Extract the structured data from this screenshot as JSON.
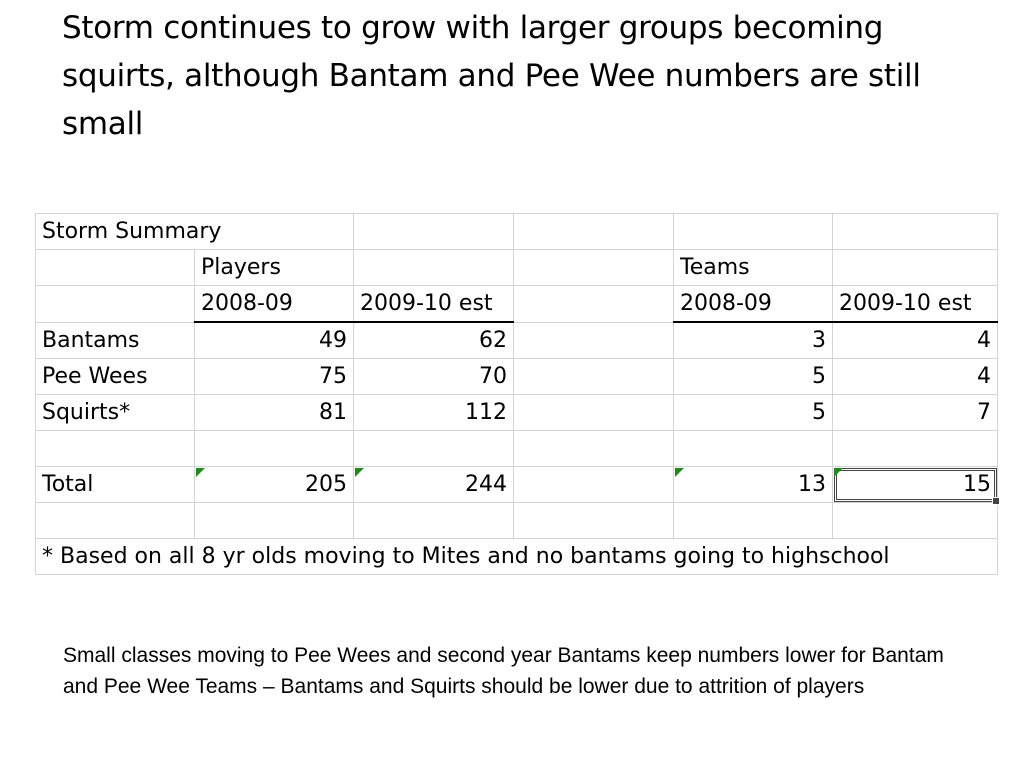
{
  "slide": {
    "title": "Storm continues to grow with larger groups becoming squirts, although Bantam and Pee Wee numbers are still small",
    "footnote": "Small classes moving to Pee Wees and second year Bantams keep numbers lower for Bantam and Pee Wee Teams – Bantams and Squirts should be lower due to attrition of players"
  },
  "sheet": {
    "title": "Storm Summary",
    "players_label": "Players",
    "teams_label": "Teams",
    "col_2008": "2008-09",
    "col_2009": "2009-10 est",
    "rows": [
      {
        "label": "Bantams",
        "players_2008": "49",
        "players_2009": "62",
        "teams_2008": "3",
        "teams_2009": "4"
      },
      {
        "label": "Pee Wees",
        "players_2008": "75",
        "players_2009": "70",
        "teams_2008": "5",
        "teams_2009": "4"
      },
      {
        "label": "Squirts*",
        "players_2008": "81",
        "players_2009": "112",
        "teams_2008": "5",
        "teams_2009": "7"
      }
    ],
    "total": {
      "label": "Total",
      "players_2008": "205",
      "players_2009": "244",
      "teams_2008": "13",
      "teams_2009": "15"
    },
    "note": "* Based on all 8 yr olds moving to Mites and no bantams going to highschool",
    "error_indicator_color": "#1e8a1e"
  }
}
